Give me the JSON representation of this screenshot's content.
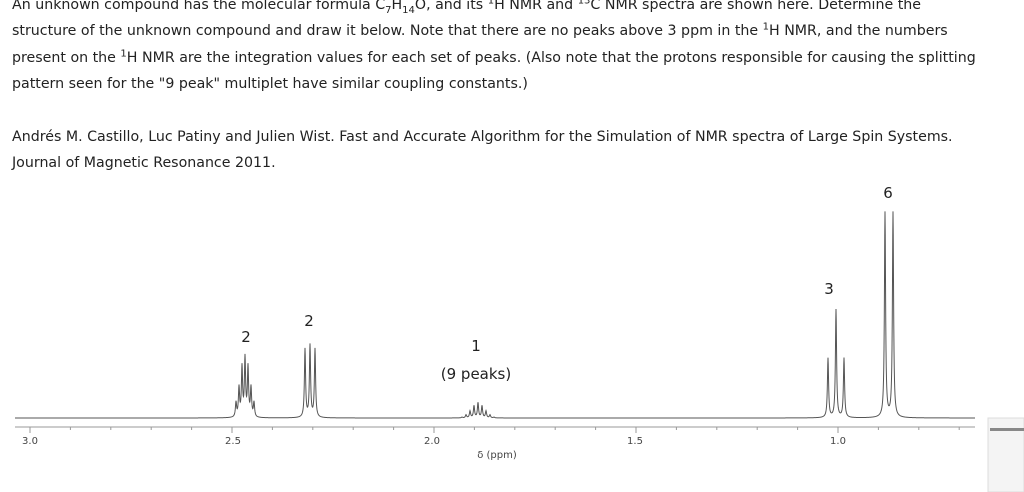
{
  "question": {
    "parts": [
      "An unknown compound has the molecular formula C",
      "7",
      "H",
      "14",
      "O, and its ",
      "1",
      "H NMR and ",
      "13",
      "C NMR spectra are shown here. Determine the structure of the unknown compound and draw it below. Note that there are no peaks above 3 ppm in the ",
      "1",
      "H NMR, and the numbers present on the ",
      "1",
      "H NMR are the integration values for each set of peaks. (Also note that the protons responsible for causing the splitting pattern seen for the \"9 peak\" multiplet have similar coupling constants.)"
    ]
  },
  "citation": "Andrés M. Castillo, Luc Patiny and Julien Wist. Fast and Accurate Algorithm for the Simulation of NMR spectra of Large Spin Systems. Journal of Magnetic Resonance 2011.",
  "spectrum": {
    "integrations": [
      "2",
      "2",
      "1",
      "3",
      "6"
    ],
    "multiplet_note": "(9 peaks)",
    "ticks": [
      "3.0",
      "2.5",
      "2.0",
      "1.5",
      "1.0"
    ],
    "axis_label": "δ (ppm)"
  }
}
